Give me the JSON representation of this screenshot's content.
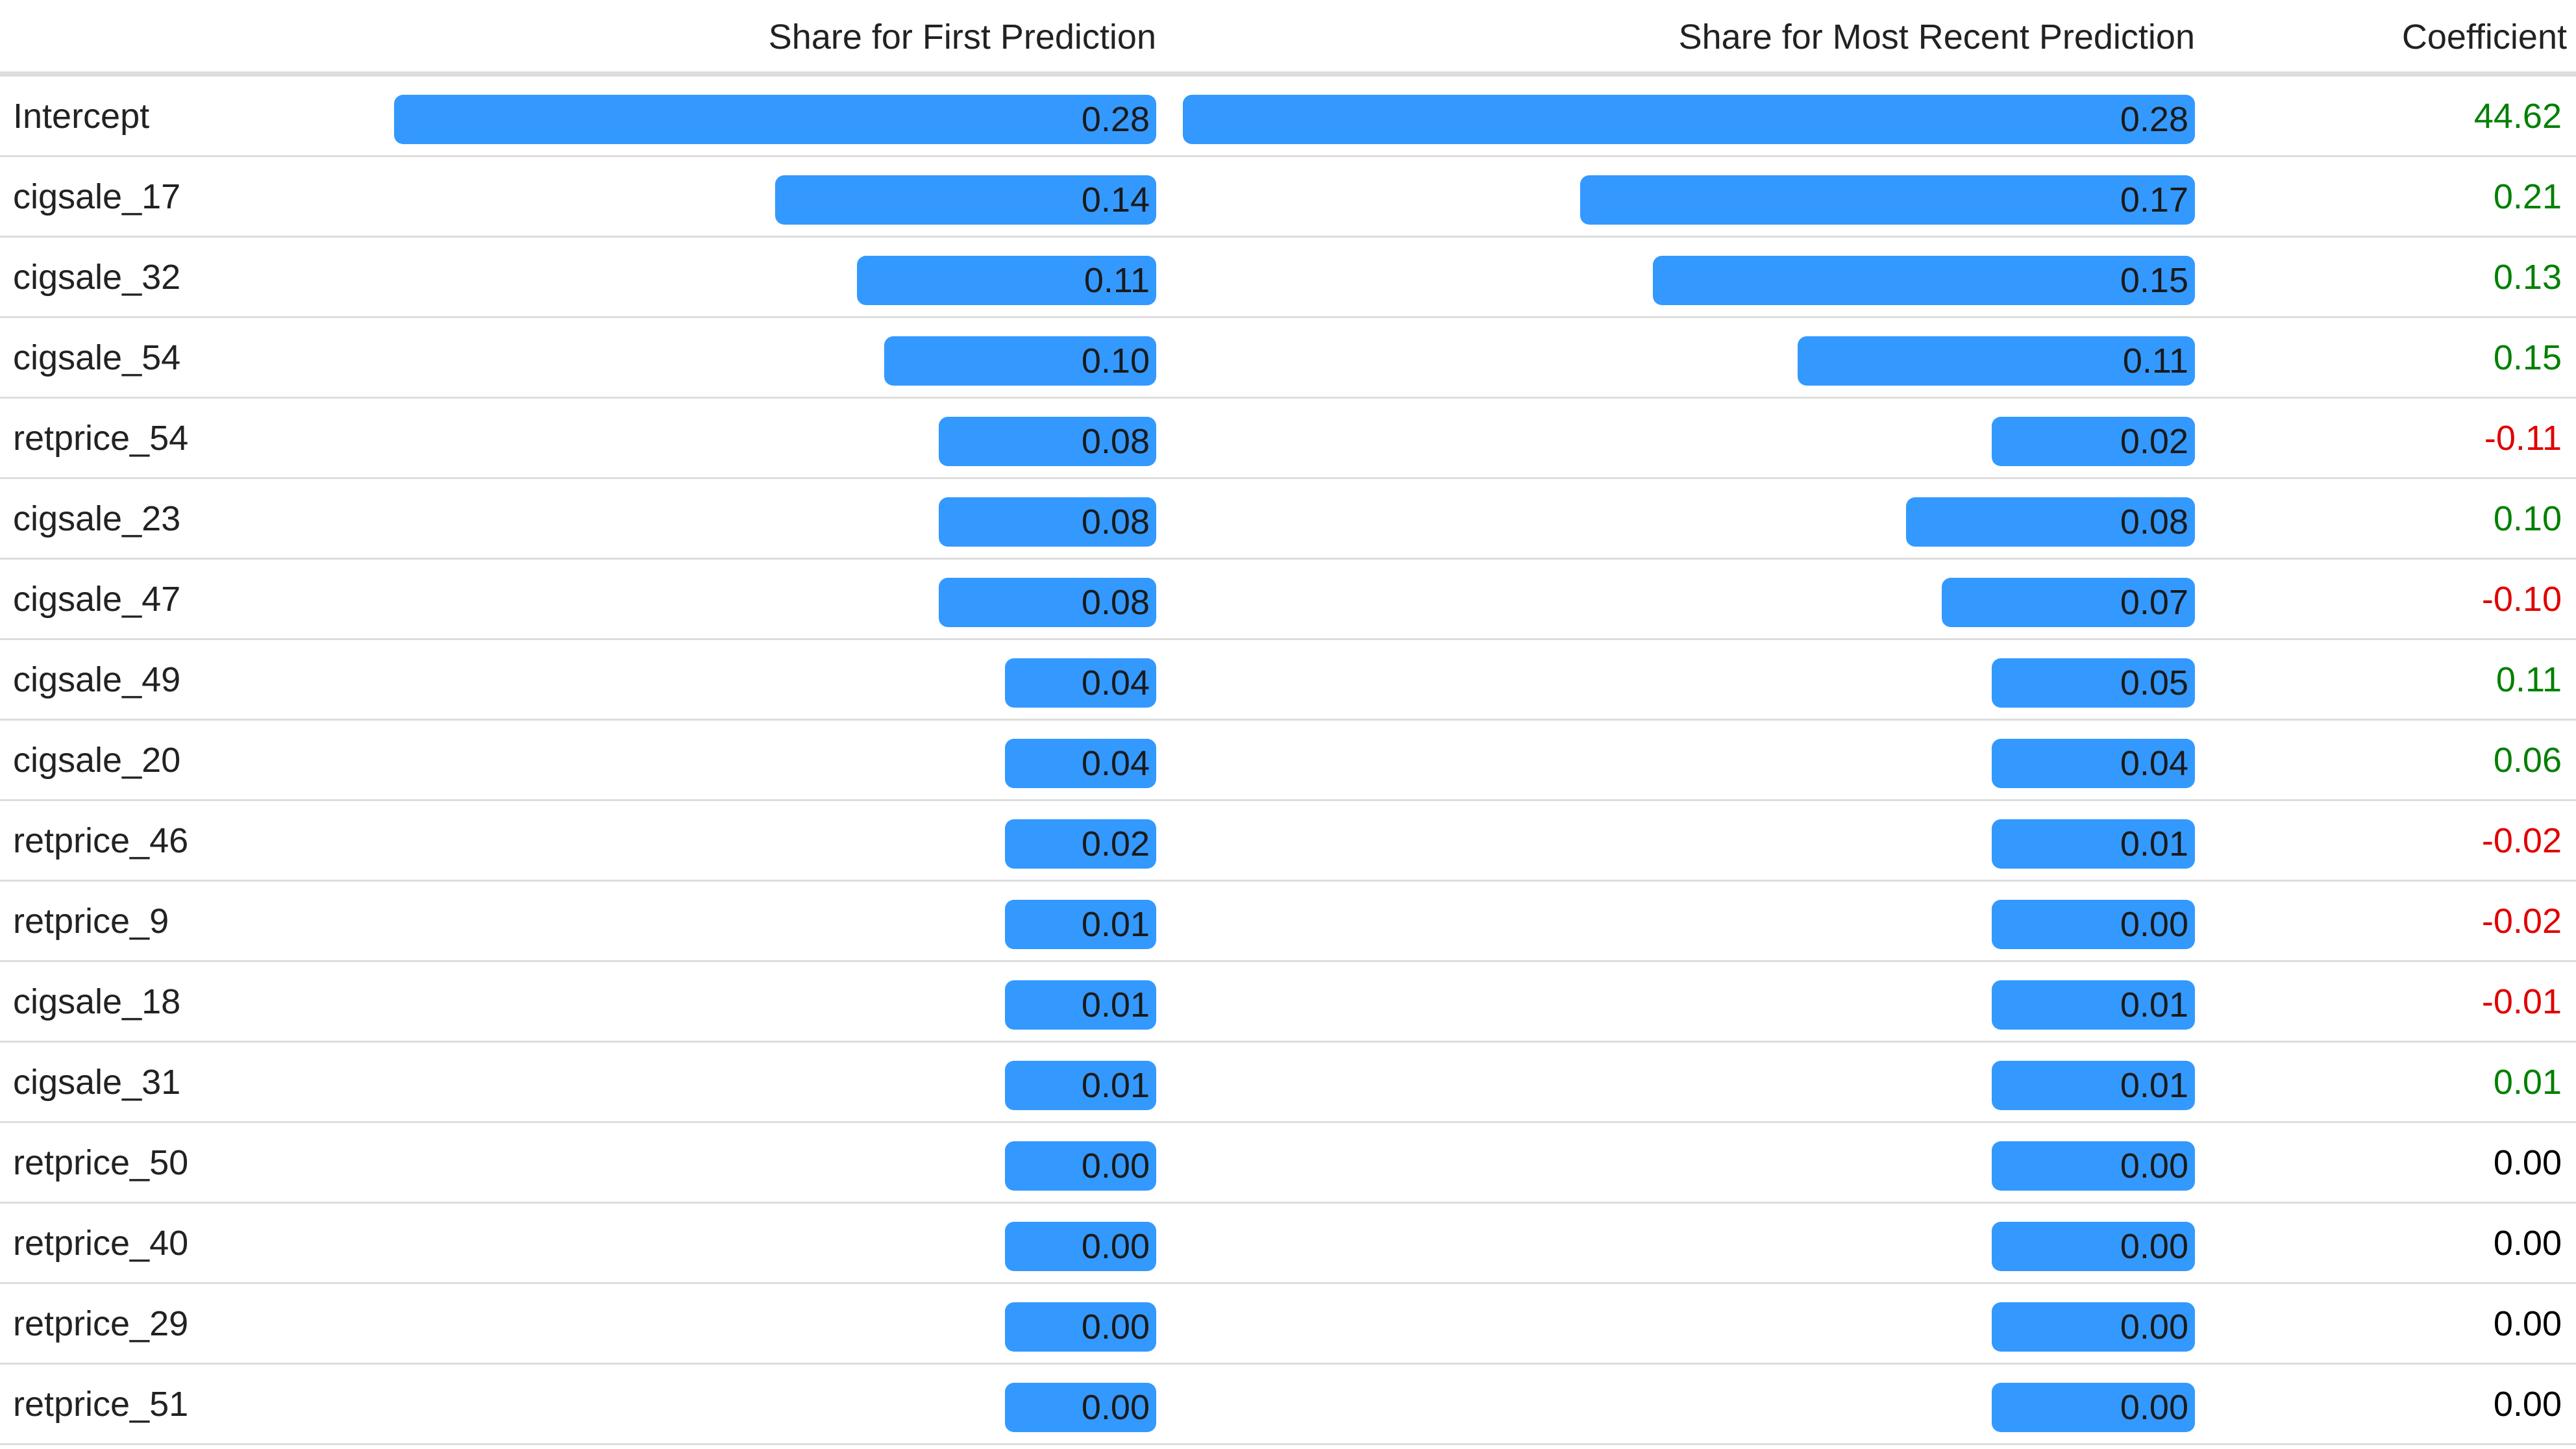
{
  "chart_data": {
    "type": "table",
    "columns": [
      "",
      "Share for First Prediction",
      "Share for Most Recent Prediction",
      "Coefficient"
    ],
    "bar_color": "#3399ff",
    "positive_color": "#008000",
    "negative_color": "#e00000",
    "zero_color": "#000000",
    "rows": [
      {
        "feature": "Intercept",
        "first": "0.28",
        "recent": "0.28",
        "coef": "44.62"
      },
      {
        "feature": "cigsale_17",
        "first": "0.14",
        "recent": "0.17",
        "coef": "0.21"
      },
      {
        "feature": "cigsale_32",
        "first": "0.11",
        "recent": "0.15",
        "coef": "0.13"
      },
      {
        "feature": "cigsale_54",
        "first": "0.10",
        "recent": "0.11",
        "coef": "0.15"
      },
      {
        "feature": "retprice_54",
        "first": "0.08",
        "recent": "0.02",
        "coef": "-0.11"
      },
      {
        "feature": "cigsale_23",
        "first": "0.08",
        "recent": "0.08",
        "coef": "0.10"
      },
      {
        "feature": "cigsale_47",
        "first": "0.08",
        "recent": "0.07",
        "coef": "-0.10"
      },
      {
        "feature": "cigsale_49",
        "first": "0.04",
        "recent": "0.05",
        "coef": "0.11"
      },
      {
        "feature": "cigsale_20",
        "first": "0.04",
        "recent": "0.04",
        "coef": "0.06"
      },
      {
        "feature": "retprice_46",
        "first": "0.02",
        "recent": "0.01",
        "coef": "-0.02"
      },
      {
        "feature": "retprice_9",
        "first": "0.01",
        "recent": "0.00",
        "coef": "-0.02"
      },
      {
        "feature": "cigsale_18",
        "first": "0.01",
        "recent": "0.01",
        "coef": "-0.01"
      },
      {
        "feature": "cigsale_31",
        "first": "0.01",
        "recent": "0.01",
        "coef": "0.01"
      },
      {
        "feature": "retprice_50",
        "first": "0.00",
        "recent": "0.00",
        "coef": "0.00"
      },
      {
        "feature": "retprice_40",
        "first": "0.00",
        "recent": "0.00",
        "coef": "0.00"
      },
      {
        "feature": "retprice_29",
        "first": "0.00",
        "recent": "0.00",
        "coef": "0.00"
      },
      {
        "feature": "retprice_51",
        "first": "0.00",
        "recent": "0.00",
        "coef": "0.00"
      }
    ]
  }
}
